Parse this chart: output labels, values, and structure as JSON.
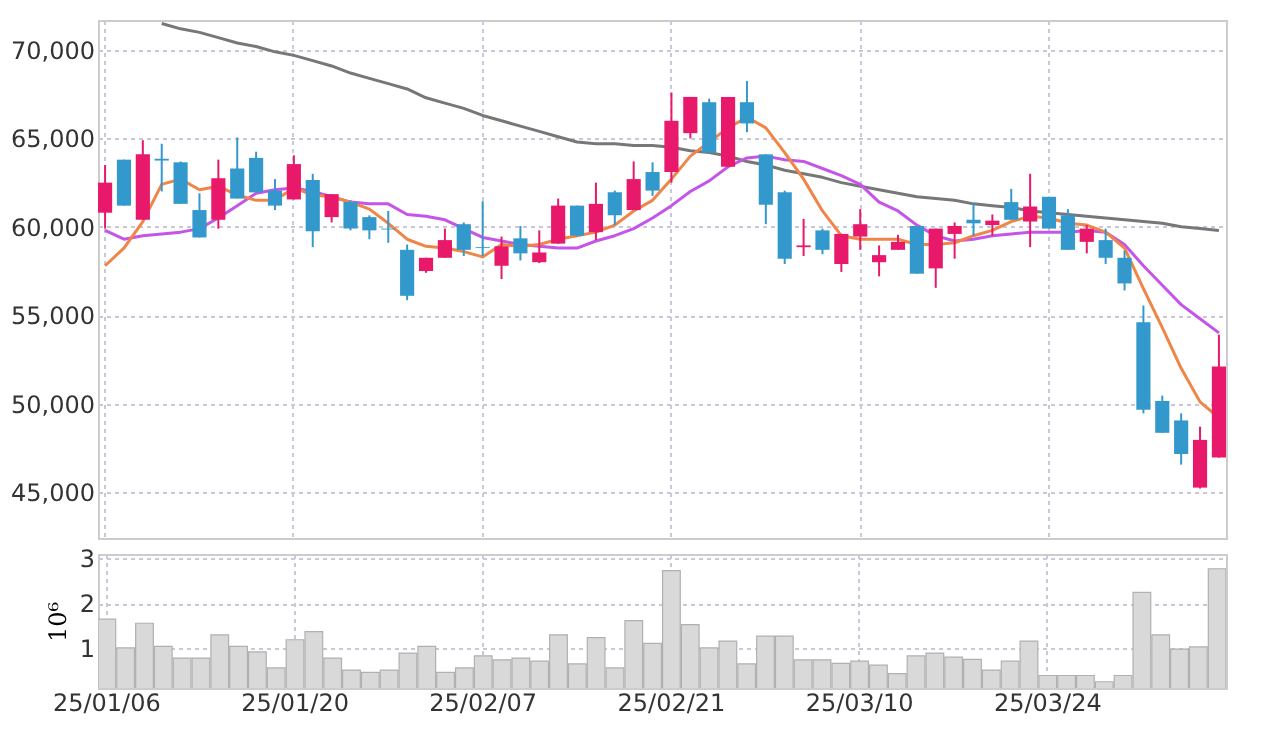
{
  "chart_data": [
    {
      "type": "candlestick",
      "categories": [
        null,
        null,
        null,
        null,
        null,
        null,
        null,
        null,
        null,
        null,
        null,
        null,
        null,
        null,
        null,
        null,
        null,
        null,
        null,
        null,
        null,
        null,
        null,
        null,
        null,
        null,
        null,
        null,
        null,
        null,
        null,
        null,
        null,
        null,
        null,
        null,
        null,
        null,
        null,
        null,
        null,
        null,
        null,
        null,
        null,
        null,
        null,
        null,
        null,
        null,
        null,
        null,
        null,
        null,
        null,
        null,
        null,
        null,
        null,
        null
      ],
      "ohlc": [
        [
          60800,
          63500,
          59900,
          62500
        ],
        [
          63800,
          63800,
          61200,
          61200
        ],
        [
          60400,
          64900,
          60400,
          64100
        ],
        [
          63850,
          64700,
          62000,
          63750
        ],
        [
          63650,
          63700,
          61300,
          61300
        ],
        [
          60950,
          61900,
          59400,
          59400
        ],
        [
          60400,
          63800,
          59900,
          62750
        ],
        [
          63300,
          65050,
          61600,
          61600
        ],
        [
          63900,
          64250,
          61950,
          61950
        ],
        [
          62050,
          62700,
          60950,
          61200
        ],
        [
          61550,
          64050,
          61550,
          63550
        ],
        [
          62650,
          63000,
          58850,
          59750
        ],
        [
          60550,
          61850,
          60250,
          61850
        ],
        [
          61400,
          61500,
          59800,
          59900
        ],
        [
          60550,
          60650,
          59300,
          59800
        ],
        [
          59900,
          60900,
          59100,
          59850
        ],
        [
          58700,
          59000,
          55850,
          56100
        ],
        [
          57500,
          58250,
          57400,
          58250
        ],
        [
          58250,
          59900,
          58250,
          59250
        ],
        [
          60150,
          60250,
          58350,
          58700
        ],
        [
          58850,
          61450,
          58350,
          58800
        ],
        [
          57800,
          59450,
          57050,
          58900
        ],
        [
          59350,
          60050,
          58100,
          58500
        ],
        [
          58000,
          59800,
          57950,
          58550
        ],
        [
          59050,
          61600,
          59050,
          61200
        ],
        [
          61200,
          61200,
          59450,
          59500
        ],
        [
          59700,
          62500,
          59250,
          61300
        ],
        [
          61950,
          62050,
          60100,
          60650
        ],
        [
          60950,
          63700,
          60950,
          62700
        ],
        [
          63100,
          63650,
          61750,
          62050
        ],
        [
          63100,
          67600,
          62500,
          66000
        ],
        [
          65300,
          67350,
          65000,
          67350
        ],
        [
          67050,
          67250,
          64200,
          64200
        ],
        [
          63400,
          67350,
          63400,
          67350
        ],
        [
          67050,
          68250,
          65350,
          65850
        ],
        [
          64100,
          64100,
          60150,
          61250
        ],
        [
          61950,
          62050,
          57900,
          58200
        ],
        [
          58850,
          60450,
          58350,
          58950
        ],
        [
          59800,
          59900,
          58450,
          58700
        ],
        [
          57900,
          59600,
          57450,
          59600
        ],
        [
          59450,
          61000,
          58700,
          60150
        ],
        [
          58000,
          58950,
          57200,
          58400
        ],
        [
          58700,
          59550,
          58700,
          59150
        ],
        [
          60050,
          60050,
          57350,
          57350
        ],
        [
          57650,
          59900,
          56550,
          59900
        ],
        [
          59600,
          60250,
          58200,
          60050
        ],
        [
          60400,
          61350,
          59500,
          60200
        ],
        [
          60100,
          60700,
          59500,
          60350
        ],
        [
          61400,
          62150,
          60400,
          60400
        ],
        [
          60300,
          63000,
          58850,
          61150
        ],
        [
          61700,
          61700,
          59900,
          59900
        ],
        [
          60650,
          61000,
          58700,
          58700
        ],
        [
          59150,
          60100,
          58500,
          59900
        ],
        [
          59250,
          59900,
          57900,
          58250
        ],
        [
          58250,
          58650,
          56400,
          56800
        ],
        [
          54600,
          55550,
          49450,
          49650
        ],
        [
          50150,
          50450,
          48350,
          48350
        ],
        [
          49050,
          49450,
          46550,
          47150
        ],
        [
          45250,
          48700,
          45200,
          47950
        ],
        [
          46950,
          53900,
          46950,
          52100
        ]
      ],
      "colors": [
        "#e8186a",
        "#3399cc",
        "#e8186a",
        "#3399cc",
        "#3399cc",
        "#3399cc",
        "#e8186a",
        "#3399cc",
        "#3399cc",
        "#3399cc",
        "#e8186a",
        "#3399cc",
        "#e8186a",
        "#3399cc",
        "#3399cc",
        "#3399cc",
        "#3399cc",
        "#e8186a",
        "#e8186a",
        "#3399cc",
        "#3399cc",
        "#e8186a",
        "#3399cc",
        "#e8186a",
        "#e8186a",
        "#3399cc",
        "#e8186a",
        "#3399cc",
        "#e8186a",
        "#3399cc",
        "#e8186a",
        "#e8186a",
        "#3399cc",
        "#e8186a",
        "#3399cc",
        "#3399cc",
        "#3399cc",
        "#e8186a",
        "#3399cc",
        "#e8186a",
        "#e8186a",
        "#e8186a",
        "#e8186a",
        "#3399cc",
        "#e8186a",
        "#e8186a",
        "#3399cc",
        "#e8186a",
        "#3399cc",
        "#e8186a",
        "#3399cc",
        "#3399cc",
        "#e8186a",
        "#3399cc",
        "#3399cc",
        "#3399cc",
        "#3399cc",
        "#3399cc",
        "#e8186a",
        "#e8186a"
      ],
      "series": [
        {
          "type": "line",
          "color": "#777777",
          "values": [
            null,
            null,
            null,
            71500,
            71200,
            71000,
            70700,
            70400,
            70200,
            69900,
            69700,
            69400,
            69100,
            68700,
            68400,
            68100,
            67800,
            67300,
            67000,
            66700,
            66300,
            66000,
            65700,
            65400,
            65100,
            64800,
            64700,
            64700,
            64600,
            64600,
            64500,
            64300,
            64200,
            64000,
            63700,
            63500,
            63200,
            63000,
            62800,
            62500,
            62300,
            62100,
            61900,
            61700,
            61600,
            61500,
            61300,
            61200,
            61100,
            60900,
            60800,
            60700,
            60600,
            60500,
            60400,
            60300,
            60200,
            60000,
            59900,
            59800
          ]
        },
        {
          "type": "line",
          "color": "#c455e8",
          "values": [
            59800,
            59300,
            59500,
            59600,
            59700,
            59900,
            60500,
            61200,
            61900,
            62100,
            62200,
            62000,
            61700,
            61400,
            61300,
            61300,
            60700,
            60600,
            60400,
            59900,
            59400,
            59200,
            59000,
            58900,
            58800,
            58800,
            59200,
            59500,
            59900,
            60500,
            61200,
            62000,
            62600,
            63400,
            63900,
            64000,
            63800,
            63700,
            63300,
            62900,
            62400,
            61400,
            60900,
            60100,
            59500,
            59200,
            59300,
            59500,
            59600,
            59700,
            59700,
            59700,
            59800,
            59700,
            59000,
            57800,
            56700,
            55600,
            54800,
            54000
          ]
        },
        {
          "type": "line",
          "color": "#f08548",
          "values": [
            57800,
            58800,
            60300,
            62400,
            62700,
            62100,
            62300,
            61800,
            61500,
            61500,
            62200,
            61800,
            61700,
            61400,
            61000,
            60200,
            59300,
            58900,
            58800,
            58600,
            58300,
            59000,
            58900,
            59000,
            59300,
            59500,
            59700,
            60100,
            60900,
            61500,
            62700,
            64000,
            64800,
            65600,
            66200,
            65600,
            64200,
            62700,
            60900,
            59500,
            59300,
            59300,
            59300,
            59000,
            59000,
            59100,
            59500,
            59800,
            60300,
            60600,
            60500,
            60200,
            60100,
            59700,
            58800,
            56500,
            54300,
            52000,
            50100,
            49200
          ]
        }
      ],
      "ylim": [
        42400,
        71700
      ],
      "yticks": [
        {
          "value": 45000,
          "label": "45,000"
        },
        {
          "value": 50000,
          "label": "50,000"
        },
        {
          "value": 55000,
          "label": "55,000"
        },
        {
          "value": 60000,
          "label": "60,000"
        },
        {
          "value": 65000,
          "label": "65,000"
        },
        {
          "value": 70000,
          "label": "70,000"
        }
      ],
      "grid": true,
      "tick_labels": "y"
    },
    {
      "type": "bar",
      "categories": [
        "25/01/06",
        null,
        null,
        null,
        null,
        null,
        null,
        null,
        null,
        null,
        "25/01/20",
        null,
        null,
        null,
        null,
        null,
        null,
        null,
        null,
        null,
        "25/02/07",
        null,
        null,
        null,
        null,
        null,
        null,
        null,
        null,
        null,
        "25/02/21",
        null,
        null,
        null,
        null,
        null,
        null,
        null,
        null,
        null,
        "25/03/10",
        null,
        null,
        null,
        null,
        null,
        null,
        null,
        null,
        null,
        "25/03/24",
        null,
        null,
        null,
        null,
        null,
        null,
        null,
        null,
        null
      ],
      "series": [
        {
          "color": "#d9d9d9",
          "values": [
            1.64,
            1.0,
            1.55,
            1.03,
            0.77,
            0.77,
            1.29,
            1.03,
            0.91,
            0.55,
            1.18,
            1.36,
            0.77,
            0.5,
            0.45,
            0.5,
            0.88,
            1.03,
            0.45,
            0.55,
            0.82,
            0.73,
            0.77,
            0.7,
            1.29,
            0.64,
            1.23,
            0.55,
            1.61,
            1.1,
            2.73,
            1.52,
            1.0,
            1.15,
            0.64,
            1.26,
            1.26,
            0.73,
            0.73,
            0.65,
            0.7,
            0.61,
            0.42,
            0.82,
            0.88,
            0.79,
            0.74,
            0.5,
            0.7,
            1.15,
            0.38,
            0.38,
            0.38,
            0.24,
            0.38,
            2.24,
            1.29,
            0.97,
            1.02,
            2.77
          ]
        }
      ],
      "ylabel": "10⁶",
      "ylim": [
        0.1,
        3.1
      ],
      "yticks": [
        1,
        2,
        3
      ],
      "grid": true
    }
  ]
}
